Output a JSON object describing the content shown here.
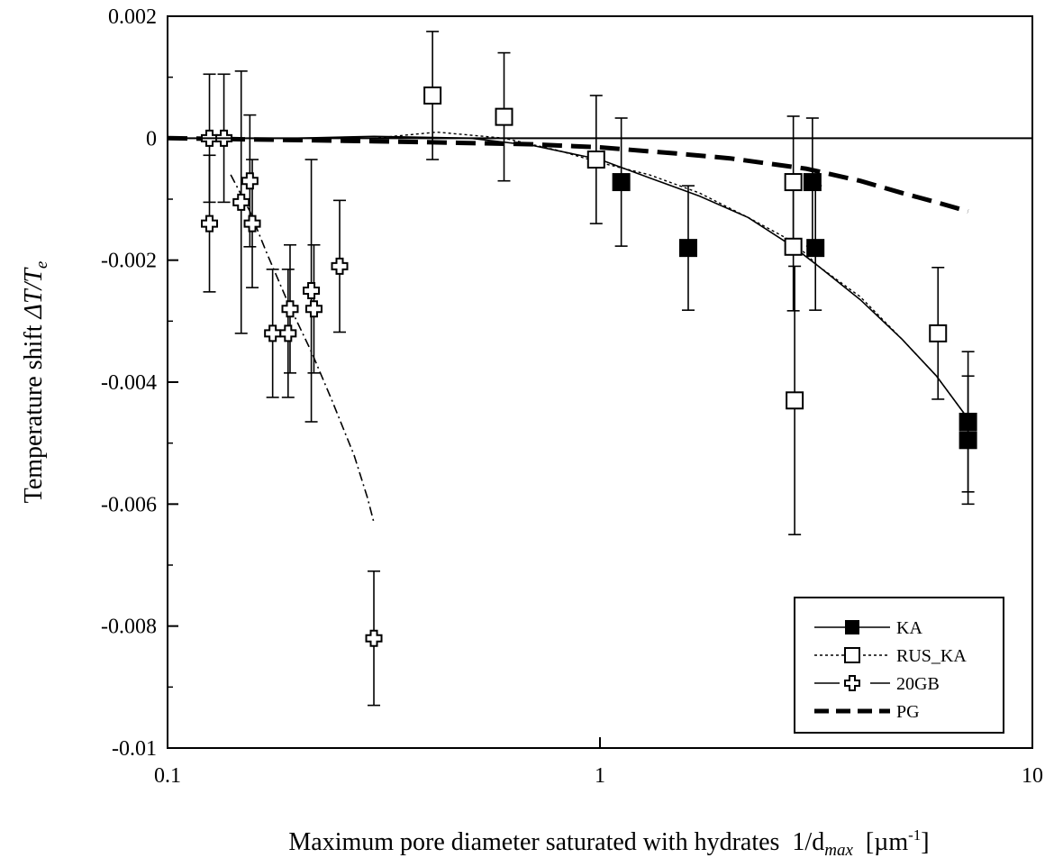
{
  "chart_data": {
    "type": "scatter",
    "title": "",
    "xlabel": {
      "main": "Maximum pore diameter saturated with hydrates  1/d",
      "sub": "max",
      "unit_open": "  [µm",
      "unit_sup": "-1",
      "unit_close": "]"
    },
    "ylabel": {
      "main": "Temperature shift  ",
      "math": "ΔT/T",
      "sub": "e"
    },
    "x_scale": "log",
    "xlim": [
      0.1,
      10
    ],
    "ylim": [
      -0.01,
      0.002
    ],
    "x_ticks": [
      0.1,
      1,
      10
    ],
    "x_tick_labels": [
      "0.1",
      "1",
      "10"
    ],
    "y_ticks": [
      0.002,
      0,
      -0.002,
      -0.004,
      -0.006,
      -0.008,
      -0.01
    ],
    "y_tick_labels": [
      "0.002",
      "0",
      "-0.002",
      "-0.004",
      "-0.006",
      "-0.008",
      "-0.01"
    ],
    "grid": false,
    "zero_line": true,
    "legend": {
      "position": "bottom-right",
      "entries": [
        "KA",
        "RUS_KA",
        "20GB",
        "PG"
      ]
    },
    "series": [
      {
        "name": "KA",
        "marker": "filled-square",
        "points": [
          {
            "x": 1.12,
            "y": -0.00072,
            "err": 0.00105
          },
          {
            "x": 1.6,
            "y": -0.0018,
            "err": 0.00102
          },
          {
            "x": 3.1,
            "y": -0.00072,
            "err": 0.00105
          },
          {
            "x": 3.15,
            "y": -0.0018,
            "err": 0.00102
          },
          {
            "x": 7.1,
            "y": -0.00465,
            "err": 0.00115
          },
          {
            "x": 7.1,
            "y": -0.00495,
            "err": 0.00105
          }
        ]
      },
      {
        "name": "RUS_KA",
        "marker": "open-square",
        "points": [
          {
            "x": 0.41,
            "y": 0.0007,
            "err": 0.00105
          },
          {
            "x": 0.6,
            "y": 0.00035,
            "err": 0.00105
          },
          {
            "x": 0.98,
            "y": -0.00035,
            "err": 0.00105
          },
          {
            "x": 2.8,
            "y": -0.00072,
            "err": 0.00108
          },
          {
            "x": 2.8,
            "y": -0.00178,
            "err": 0.00105
          },
          {
            "x": 2.82,
            "y": -0.0043,
            "err": 0.0022
          },
          {
            "x": 6.05,
            "y": -0.0032,
            "err": 0.00108
          }
        ]
      },
      {
        "name": "20GB",
        "marker": "open-cross",
        "points": [
          {
            "x": 0.125,
            "y": 0.0,
            "err": 0.00105
          },
          {
            "x": 0.125,
            "y": -0.0014,
            "err": 0.00112
          },
          {
            "x": 0.135,
            "y": 0.0,
            "err": 0.00105
          },
          {
            "x": 0.148,
            "y": -0.00105,
            "err": 0.00215
          },
          {
            "x": 0.155,
            "y": -0.0007,
            "err": 0.00108
          },
          {
            "x": 0.157,
            "y": -0.0014,
            "err": 0.00105
          },
          {
            "x": 0.175,
            "y": -0.0032,
            "err": 0.00105
          },
          {
            "x": 0.19,
            "y": -0.0032,
            "err": 0.00105
          },
          {
            "x": 0.192,
            "y": -0.0028,
            "err": 0.00105
          },
          {
            "x": 0.215,
            "y": -0.0025,
            "err": 0.00215
          },
          {
            "x": 0.218,
            "y": -0.0028,
            "err": 0.00105
          },
          {
            "x": 0.25,
            "y": -0.0021,
            "err": 0.00108
          },
          {
            "x": 0.3,
            "y": -0.0082,
            "err": 0.0011
          }
        ]
      }
    ],
    "curves": [
      {
        "name": "KA",
        "style": "solid",
        "x": [
          0.1,
          0.2,
          0.3,
          0.5,
          0.7,
          1.0,
          1.3,
          1.7,
          2.2,
          2.8,
          3.2,
          4.0,
          5.0,
          6.0,
          7.1
        ],
        "y": [
          0.0,
          0.0,
          3e-05,
          0.0,
          -0.00012,
          -0.00035,
          -0.00065,
          -0.00095,
          -0.0013,
          -0.00178,
          -0.0021,
          -0.00265,
          -0.0033,
          -0.0039,
          -0.0046
        ]
      },
      {
        "name": "RUS_KA",
        "style": "dotted",
        "x": [
          0.1,
          0.2,
          0.3,
          0.42,
          0.6,
          0.8,
          1.0,
          1.3,
          1.7,
          2.2,
          2.8,
          3.2,
          4.0,
          5.0,
          6.0,
          7.1
        ],
        "y": [
          0.0,
          0.0,
          0.0,
          0.0001,
          0.0,
          -0.0002,
          -0.0004,
          -0.0006,
          -0.0009,
          -0.0013,
          -0.0017,
          -0.0021,
          -0.0026,
          -0.0033,
          -0.0039,
          -0.0046
        ]
      },
      {
        "name": "20GB",
        "style": "dash-dot",
        "x": [
          0.14,
          0.155,
          0.17,
          0.19,
          0.215,
          0.24,
          0.27,
          0.29,
          0.3
        ],
        "y": [
          -0.0006,
          -0.0012,
          -0.0019,
          -0.0027,
          -0.0035,
          -0.0043,
          -0.0052,
          -0.0059,
          -0.0063
        ]
      },
      {
        "name": "PG",
        "style": "long-dash",
        "x": [
          0.1,
          0.3,
          0.5,
          0.7,
          1.0,
          1.5,
          2.0,
          3.0,
          4.0,
          5.0,
          6.0,
          7.1
        ],
        "y": [
          0.0,
          -5e-05,
          -8e-05,
          -0.0001,
          -0.00015,
          -0.00025,
          -0.00033,
          -0.0005,
          -0.0007,
          -0.0009,
          -0.00105,
          -0.0012
        ]
      }
    ]
  }
}
